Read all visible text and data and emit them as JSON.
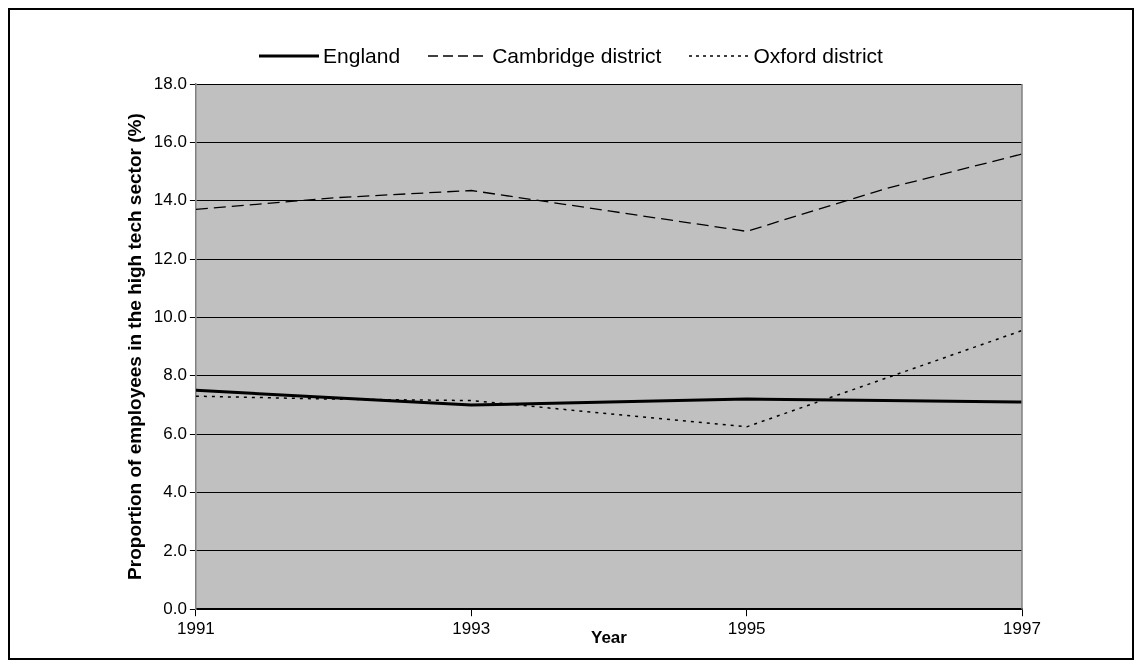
{
  "chart_data": {
    "type": "line",
    "xlabel": "Year",
    "ylabel": "Proportion of employees in the high tech sector (%)",
    "x": [
      1991,
      1992,
      1993,
      1994,
      1995,
      1996,
      1997
    ],
    "series": [
      {
        "name": "England",
        "color": "#000000",
        "line_style": "solid",
        "values": [
          7.5,
          7.25,
          7.0,
          7.1,
          7.2,
          7.15,
          7.1
        ]
      },
      {
        "name": "Cambridge district",
        "color": "#000000",
        "line_style": "dashed",
        "values": [
          13.7,
          14.1,
          14.35,
          13.65,
          12.95,
          14.4,
          15.6
        ]
      },
      {
        "name": "Oxford district",
        "color": "#000000",
        "line_style": "dotted",
        "values": [
          7.3,
          7.2,
          7.15,
          6.7,
          6.25,
          7.9,
          9.55
        ]
      }
    ],
    "xlim": [
      1991,
      1997
    ],
    "xticks": [
      1991,
      1993,
      1995,
      1997
    ],
    "ylim": [
      0,
      18
    ],
    "yticks": [
      {
        "value": 0,
        "label": "0.0"
      },
      {
        "value": 2,
        "label": "2.0"
      },
      {
        "value": 4,
        "label": "4.0"
      },
      {
        "value": 6,
        "label": "6.0"
      },
      {
        "value": 8,
        "label": "8.0"
      },
      {
        "value": 10,
        "label": "10.0"
      },
      {
        "value": 12,
        "label": "12.0"
      },
      {
        "value": 14,
        "label": "14.0"
      },
      {
        "value": 16,
        "label": "16.0"
      },
      {
        "value": 18,
        "label": "18.0"
      }
    ],
    "grid": "y",
    "legend": "top",
    "marker": "none"
  }
}
